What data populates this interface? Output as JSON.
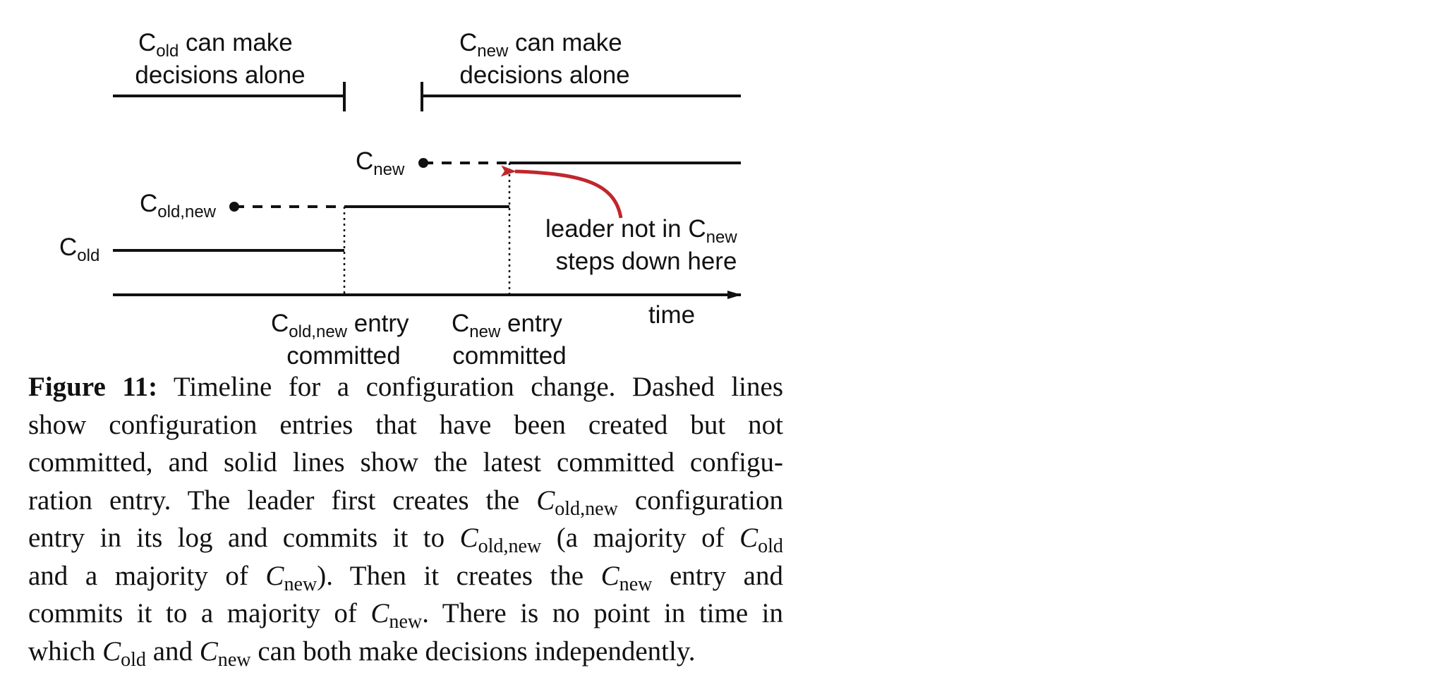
{
  "top_left_label": {
    "base": "C",
    "sub": "old",
    "rest": " can make",
    "line2": "decisions alone"
  },
  "top_right_label": {
    "base": "C",
    "sub": "new",
    "rest": " can make",
    "line2": "decisions alone"
  },
  "config_labels": {
    "cnew": {
      "base": "C",
      "sub": "new"
    },
    "coldnew": {
      "base": "C",
      "sub": "old,new"
    },
    "cold": {
      "base": "C",
      "sub": "old"
    }
  },
  "annotation": {
    "line1_text": "leader not in C",
    "line1_sub": "new",
    "line2": "steps down here"
  },
  "axis_label": "time",
  "bottom_left_label": {
    "base": "C",
    "sub": "old,new",
    "rest": " entry",
    "line2": "committed"
  },
  "bottom_right_label": {
    "base": "C",
    "sub": "new",
    "rest": " entry",
    "line2": "committed"
  },
  "arrow_color": "#c0272d",
  "caption": {
    "figure_label": "Figure 11:",
    "l1": " Timeline for a configuration change. Dashed lines",
    "l2": "show configuration entries that have been created but not",
    "l3": "committed, and solid lines show the latest committed configu-",
    "l4a": "ration entry. The leader first creates the ",
    "l4b": " configuration",
    "l5a": "entry in its log and commits it to ",
    "l5b": " (a majority of ",
    "l6a": "and a majority of ",
    "l6b": "). Then it creates the ",
    "l6c": " entry and",
    "l7a": "commits it to a majority of ",
    "l7b": ". There is no point in time in",
    "l8a": "which ",
    "l8b": " and ",
    "l8c": " can both make decisions independently.",
    "sym_C": "C",
    "sub_oldnew": "old,new",
    "sub_old": "old",
    "sub_new": "new"
  }
}
